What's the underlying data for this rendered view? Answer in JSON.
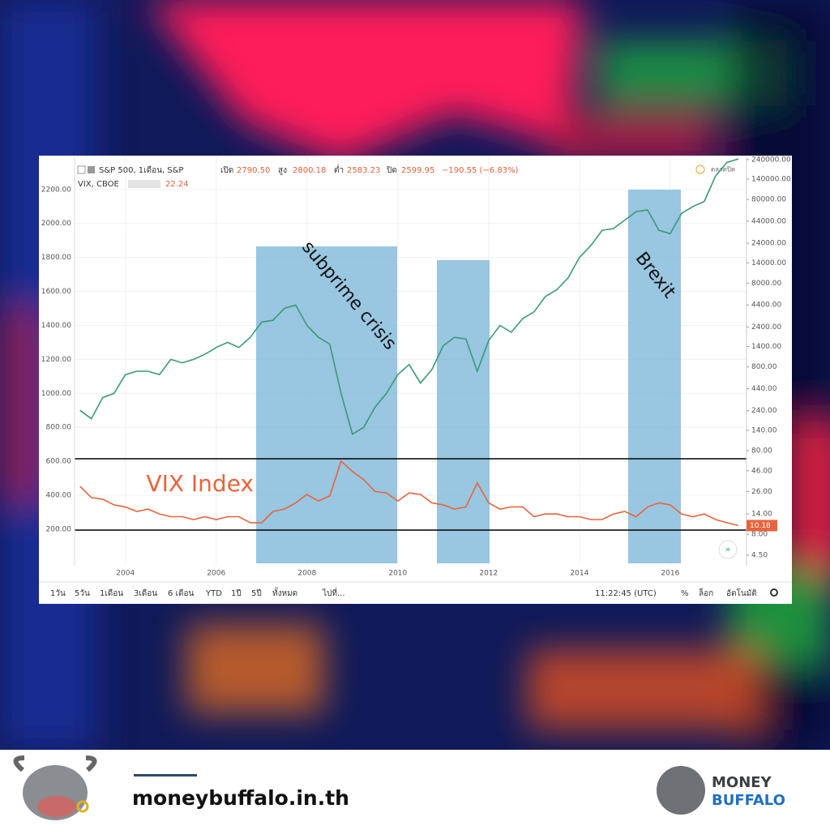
{
  "chart_data": {
    "type": "line",
    "header": {
      "symbol": "S&P 500, 1เดือน, S&P",
      "open_label": "เปิด",
      "open": "2790.50",
      "high_label": "สูง",
      "high": "2800.18",
      "low_label": "ต่ำ",
      "low": "2583.23",
      "close_label": "ปิด",
      "close": "2599.95",
      "change": "−190.55 (−6.83%)",
      "vix_symbol": "VIX, CBOE",
      "vix_value": "22.24",
      "right_note": "ตลาดปิด"
    },
    "annotations": [
      "subprime crisis",
      "Brexit",
      "VIX Index"
    ],
    "x": [
      2003,
      2003.25,
      2003.5,
      2003.75,
      2004,
      2004.25,
      2004.5,
      2004.75,
      2005,
      2005.25,
      2005.5,
      2005.75,
      2006,
      2006.25,
      2006.5,
      2006.75,
      2007,
      2007.25,
      2007.5,
      2007.75,
      2008,
      2008.25,
      2008.5,
      2008.75,
      2009,
      2009.25,
      2009.5,
      2009.75,
      2010,
      2010.25,
      2010.5,
      2010.75,
      2011,
      2011.25,
      2011.5,
      2011.75,
      2012,
      2012.25,
      2012.5,
      2012.75,
      2013,
      2013.25,
      2013.5,
      2013.75,
      2014,
      2014.25,
      2014.5,
      2014.75,
      2015,
      2015.25,
      2015.5,
      2015.75,
      2016,
      2016.25,
      2016.5,
      2016.75,
      2017,
      2017.25,
      2017.5
    ],
    "series": [
      {
        "name": "S&P 500",
        "color": "#3a9a78",
        "values": [
          900,
          850,
          975,
          1000,
          1110,
          1130,
          1130,
          1110,
          1200,
          1180,
          1200,
          1230,
          1270,
          1300,
          1270,
          1330,
          1420,
          1430,
          1500,
          1520,
          1400,
          1330,
          1290,
          1000,
          760,
          800,
          920,
          1000,
          1110,
          1170,
          1060,
          1140,
          1280,
          1330,
          1320,
          1130,
          1310,
          1400,
          1360,
          1440,
          1480,
          1570,
          1610,
          1680,
          1800,
          1870,
          1960,
          1970,
          2020,
          2070,
          2080,
          1960,
          1940,
          2060,
          2100,
          2130,
          2280,
          2360,
          2380
        ]
      },
      {
        "name": "VIX",
        "color": "#e8643c",
        "axis": "y2",
        "values": [
          30,
          22,
          21,
          18,
          17,
          15,
          16,
          14,
          13,
          13,
          12,
          13,
          12,
          13,
          13,
          11,
          11,
          15,
          16,
          19,
          24,
          20,
          23,
          60,
          45,
          36,
          26,
          25,
          20,
          25,
          24,
          19,
          18,
          16,
          17,
          33,
          19,
          16,
          17,
          17,
          13,
          14,
          14,
          13,
          13,
          12,
          12,
          14,
          15,
          13,
          17,
          19,
          18,
          14,
          13,
          14,
          12,
          11,
          10.18
        ]
      }
    ],
    "xlim": [
      2002.88,
      2017.68
    ],
    "xticks": [
      2004,
      2006,
      2008,
      2010,
      2012,
      2014,
      2016
    ],
    "ylim": [
      -15,
      2390
    ],
    "yticks": [
      {
        "value": 200,
        "label": "200.00"
      },
      {
        "value": 400,
        "label": "400.00"
      },
      {
        "value": 600,
        "label": "600.00"
      },
      {
        "value": 800,
        "label": "800.00"
      },
      {
        "value": 1000,
        "label": "1000.00"
      },
      {
        "value": 1200,
        "label": "1200.00"
      },
      {
        "value": 1400,
        "label": "1400.00"
      },
      {
        "value": 1600,
        "label": "1600.00"
      },
      {
        "value": 1800,
        "label": "1800.00"
      },
      {
        "value": 2000,
        "label": "2000.00"
      },
      {
        "value": 2200,
        "label": "2200.00"
      }
    ],
    "y2lim": [
      3.37,
      256000
    ],
    "y2log": true,
    "y2ticks": [
      {
        "value": 4.5,
        "label": "4.50"
      },
      {
        "value": 8,
        "label": "8.00"
      },
      {
        "value": 14,
        "label": "14.00"
      },
      {
        "value": 26,
        "label": "26.00"
      },
      {
        "value": 46,
        "label": "46.00"
      },
      {
        "value": 80,
        "label": "80.00"
      },
      {
        "value": 140,
        "label": "140.00"
      },
      {
        "value": 240,
        "label": "240.00"
      },
      {
        "value": 440,
        "label": "440.00"
      },
      {
        "value": 800,
        "label": "800.00"
      },
      {
        "value": 1400,
        "label": "1400.00"
      },
      {
        "value": 2400,
        "label": "2400.00"
      },
      {
        "value": 4400,
        "label": "4400.00"
      },
      {
        "value": 8000,
        "label": "8000.00"
      },
      {
        "value": 14000,
        "label": "14000.00"
      },
      {
        "value": 24000,
        "label": "24000.00"
      },
      {
        "value": 44000,
        "label": "44000.00"
      },
      {
        "value": 80000,
        "label": "80000.00"
      },
      {
        "value": 140000,
        "label": "140000.00"
      },
      {
        "value": 240000,
        "label": "240000.00"
      }
    ],
    "grid": true
  },
  "toolbar": {
    "ranges": [
      "1วัน",
      "5วัน",
      "1เดือน",
      "3เดือน",
      "6 เดือน",
      "YTD",
      "1ปี",
      "5ปี",
      "ทั้งหมด"
    ],
    "goto": "ไปที่...",
    "time": "11:22:45 (UTC)",
    "percent": "%",
    "log": "ล็อก",
    "auto": "อัตโนมัติ"
  },
  "footer": {
    "site": "moneybuffalo.in.th",
    "brand_top": "MONEY",
    "brand_bottom": "BUFFALO"
  }
}
